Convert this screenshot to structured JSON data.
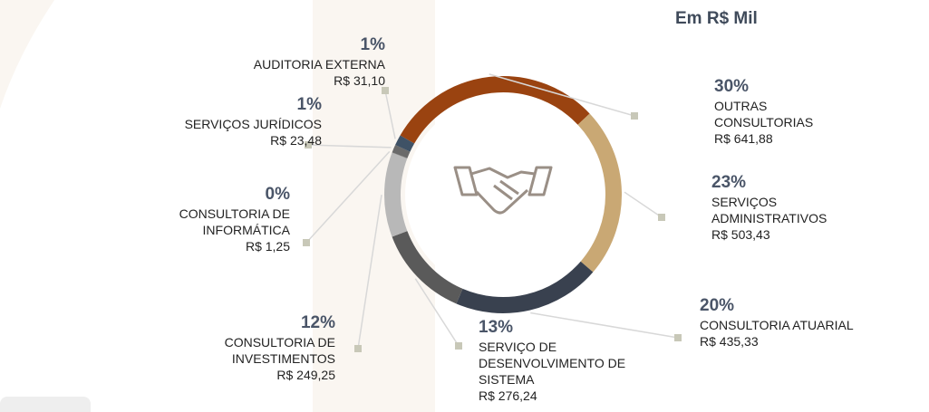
{
  "chart_data": {
    "type": "donut",
    "subtitle": "Em R$ Mil",
    "categories": [
      "OUTRAS CONSULTORIAS",
      "SERVIÇOS ADMINISTRATIVOS",
      "CONSULTORIA ATUARIAL",
      "SERVIÇO DE DESENVOLVIMENTO DE SISTEMA",
      "CONSULTORIA DE INVESTIMENTOS",
      "CONSULTORIA DE INFORMÁTICA",
      "SERVIÇOS JURÍDICOS",
      "AUDITORIA EXTERNA"
    ],
    "values": [
      641.88,
      503.43,
      435.33,
      276.24,
      249.25,
      1.25,
      23.48,
      31.1
    ],
    "value_labels": [
      "R$ 641,88",
      "R$ 503,43",
      "R$ 435,33",
      "R$ 276,24",
      "R$ 249,25",
      "R$ 1,25",
      "R$ 23,48",
      "R$ 31,10"
    ],
    "shares": [
      30,
      23,
      20,
      13,
      12,
      0,
      1,
      1
    ],
    "share_labels": [
      "30%",
      "23%",
      "20%",
      "13%",
      "12%",
      "0%",
      "1%",
      "1%"
    ],
    "colors": [
      "#9a4310",
      "#c9a874",
      "#39414f",
      "#5a5a5a",
      "#b8b8b8",
      "#8a8a8a",
      "#6a6a6a",
      "#3f5266"
    ]
  }
}
